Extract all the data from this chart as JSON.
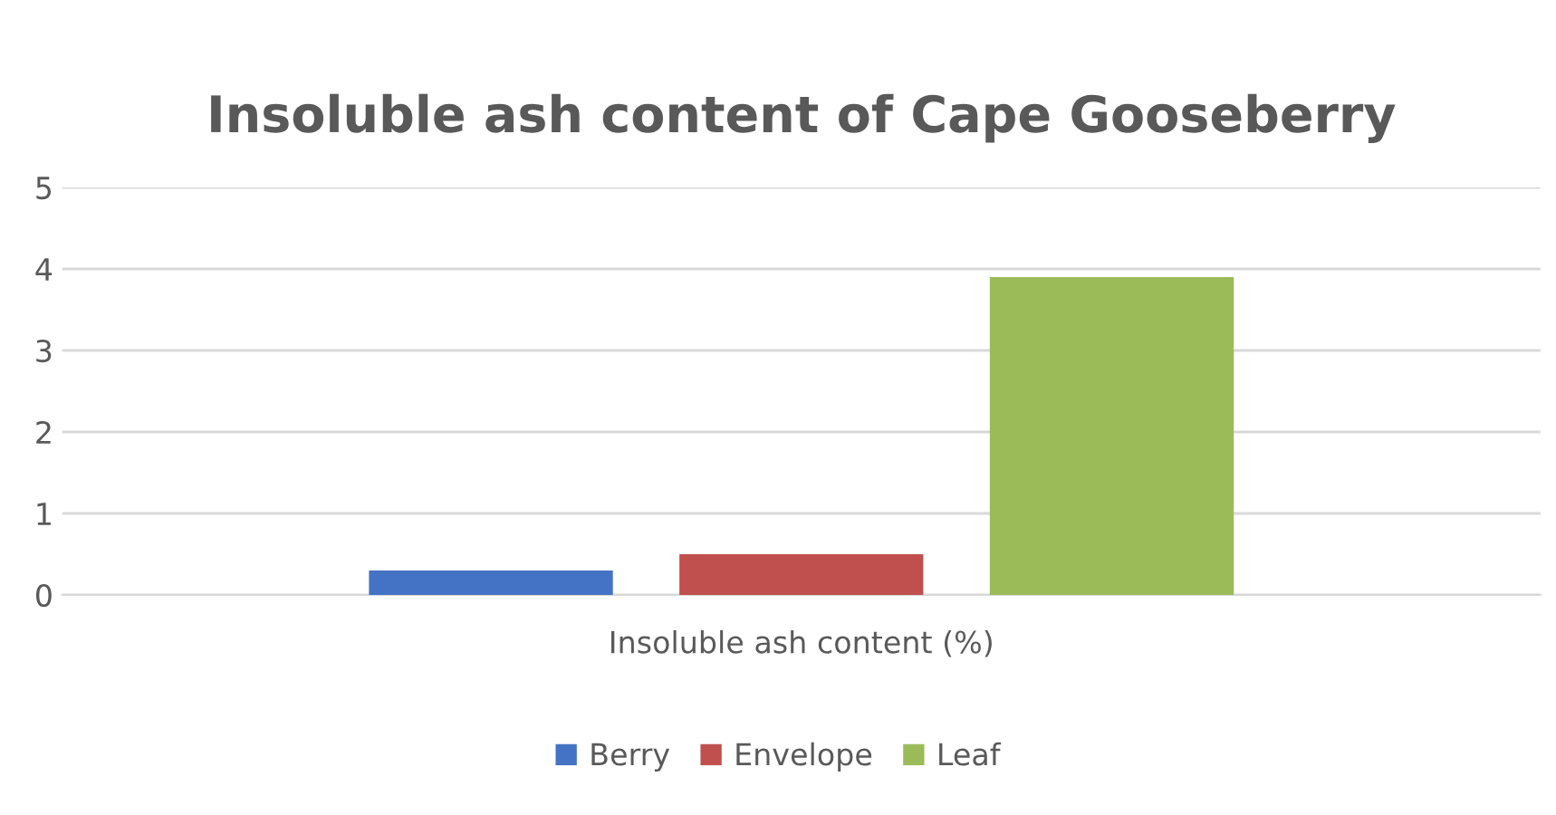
{
  "chart_data": {
    "type": "bar",
    "title": "Insoluble ash content of Cape Gooseberry",
    "categories": [
      "Insoluble ash content (%)"
    ],
    "series": [
      {
        "name": "Berry",
        "color": "#4472c4",
        "values": [
          0.3
        ]
      },
      {
        "name": "Envelope",
        "color": "#c0504d",
        "values": [
          0.5
        ]
      },
      {
        "name": "Leaf",
        "color": "#9bbb59",
        "values": [
          3.9
        ]
      }
    ],
    "ylim": [
      0,
      5
    ],
    "yticks": [
      0,
      1,
      2,
      3,
      4,
      5
    ],
    "grid": "y",
    "legend": "bottom"
  }
}
